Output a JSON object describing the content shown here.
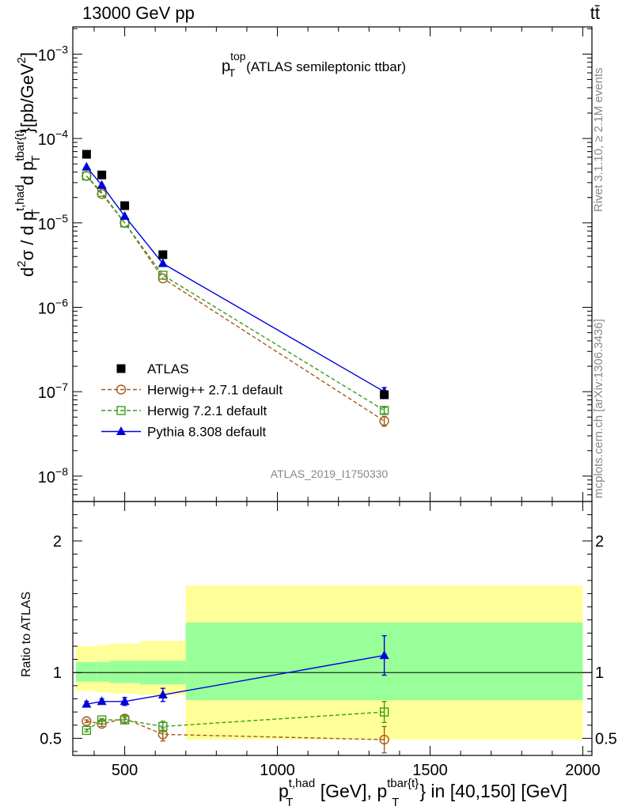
{
  "header": {
    "left": "13000 GeV pp",
    "right": "tt̄"
  },
  "side": {
    "rivet": "Rivet 3.1.10, ≥ 2.1M events",
    "mcplots": "mcplots.cern.ch [arXiv:1306.3436]"
  },
  "chart_data": {
    "type": "line",
    "title": {
      "main": "p",
      "sup": "top",
      "sub": "T",
      "rest": "(ATLAS semileptonic ttbar)"
    },
    "analysis_label": "ATLAS_2019_I1750330",
    "x": [
      375,
      425,
      500,
      625,
      1350
    ],
    "x_range": [
      330,
      2030
    ],
    "x_ticks": [
      500,
      1000,
      1500,
      2000
    ],
    "x_tick_labels": [
      "500",
      "1000",
      "1500",
      "2000"
    ],
    "xlabel": {
      "p1": "p",
      "sup1": "t,had",
      "sub1": "T",
      "mid": "[GeV], p",
      "sup2": "tbar{t}",
      "sub2": "T",
      "end": "} in [40,150] [GeV]"
    },
    "ylabel_main": {
      "a": "d",
      "a_sup": "2",
      "b": "σ / d p",
      "b_sup": "t,had",
      "b_sub": "T",
      "c": "d p",
      "c_sup": "tbar{t}",
      "c_sub": "T",
      "d": "}[pb/GeV",
      "d_sup": "2",
      "e": "]"
    },
    "ylim_main": [
      5e-09,
      0.0021
    ],
    "yscale_main": "log",
    "y_ticks_main": [
      {
        "value": 1e-08,
        "mant": "10",
        "exp": "−8"
      },
      {
        "value": 1e-07,
        "mant": "10",
        "exp": "−7"
      },
      {
        "value": 1e-06,
        "mant": "10",
        "exp": "−6"
      },
      {
        "value": 1e-05,
        "mant": "10",
        "exp": "−5"
      },
      {
        "value": 0.0001,
        "mant": "10",
        "exp": "−4"
      },
      {
        "value": 0.001,
        "mant": "10",
        "exp": "−3"
      }
    ],
    "ylabel_ratio": "Ratio to ATLAS",
    "ylim_ratio": [
      0.37,
      2.3
    ],
    "y_ticks_ratio": [
      0.5,
      1,
      2
    ],
    "y_tick_labels_ratio": [
      "0.5",
      "1",
      "2"
    ],
    "bin_edges": [
      340,
      410,
      450,
      550,
      700,
      2000
    ],
    "band_inner": [
      [
        0.93,
        1.08
      ],
      [
        0.93,
        1.08
      ],
      [
        0.92,
        1.09
      ],
      [
        0.91,
        1.09
      ],
      [
        0.79,
        1.38
      ]
    ],
    "band_outer": [
      [
        0.86,
        1.2
      ],
      [
        0.85,
        1.21
      ],
      [
        0.84,
        1.22
      ],
      [
        0.83,
        1.24
      ],
      [
        0.49,
        1.66
      ]
    ],
    "series": [
      {
        "name": "ATLAS",
        "color": "#000000",
        "marker": "square",
        "dashed": false,
        "values": [
          6.5e-05,
          3.7e-05,
          1.6e-05,
          4.2e-06,
          9.2e-08
        ],
        "ratio": [
          1,
          1,
          1,
          1,
          1
        ]
      },
      {
        "name": "Herwig++ 2.7.1 default",
        "color": "#a55a15",
        "marker": "circle",
        "dashed": true,
        "values": [
          3.6e-05,
          2.2e-05,
          1e-05,
          2.2e-06,
          4.5e-08
        ],
        "err_main": [
          0,
          0,
          0,
          0,
          6e-09
        ],
        "ratio": [
          0.63,
          0.61,
          0.65,
          0.53,
          0.49
        ],
        "ratio_err": [
          0.01,
          0.02,
          0.03,
          0.05,
          0.1
        ]
      },
      {
        "name": "Herwig 7.2.1 default",
        "color": "#3a9c1c",
        "marker": "opensquare",
        "dashed": true,
        "values": [
          3.6e-05,
          2.3e-05,
          1e-05,
          2.4e-06,
          6e-08
        ],
        "err_main": [
          0,
          0,
          0,
          0,
          5e-09
        ],
        "ratio": [
          0.56,
          0.64,
          0.64,
          0.59,
          0.7
        ],
        "ratio_err": [
          0.01,
          0.01,
          0.02,
          0.04,
          0.08
        ]
      },
      {
        "name": "Pythia 8.308 default",
        "color": "#0000dd",
        "marker": "triangle",
        "dashed": false,
        "values": [
          4.6e-05,
          2.8e-05,
          1.2e-05,
          3.3e-06,
          1e-07
        ],
        "err_main": [
          0,
          0,
          0,
          0,
          1.2e-08
        ],
        "ratio": [
          0.76,
          0.78,
          0.78,
          0.83,
          1.13
        ],
        "ratio_err": [
          0.02,
          0.02,
          0.03,
          0.05,
          0.15
        ]
      }
    ]
  }
}
